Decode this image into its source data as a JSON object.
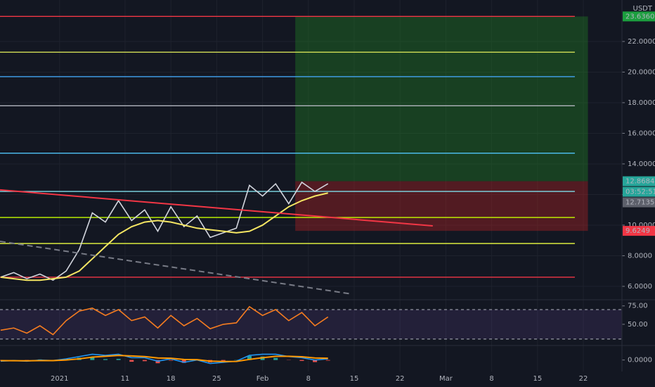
{
  "chart_data": [
    {
      "type": "line",
      "currency": "USDT",
      "x": [
        -9,
        -7,
        -5,
        -3,
        -1,
        1,
        3,
        5,
        7,
        9,
        11,
        13,
        15,
        17,
        19,
        21,
        23,
        25,
        27,
        29,
        31,
        33,
        35,
        37,
        39,
        41
      ],
      "series": [
        {
          "color": "#d1d4dc",
          "values": [
            6.6,
            6.9,
            6.5,
            6.8,
            6.4,
            7.0,
            8.4,
            10.8,
            10.2,
            11.6,
            10.3,
            11.0,
            9.6,
            11.2,
            9.9,
            10.6,
            9.2,
            9.5,
            9.8,
            12.6,
            11.9,
            12.7,
            11.4,
            12.8,
            12.2,
            12.71
          ]
        },
        {
          "color": "#f5e663",
          "values": [
            6.6,
            6.5,
            6.4,
            6.4,
            6.5,
            6.6,
            7.0,
            7.8,
            8.6,
            9.4,
            9.9,
            10.2,
            10.3,
            10.2,
            10.0,
            9.8,
            9.7,
            9.6,
            9.5,
            9.6,
            10.0,
            10.6,
            11.2,
            11.6,
            11.9,
            12.1
          ]
        }
      ],
      "xlim": [
        -9.1,
        85.9
      ],
      "xticks": [
        {
          "value": 0,
          "label": "2021"
        },
        {
          "value": 10,
          "label": "11"
        },
        {
          "value": 17,
          "label": "18"
        },
        {
          "value": 24,
          "label": "25"
        },
        {
          "value": 31,
          "label": "Feb"
        },
        {
          "value": 38,
          "label": "8"
        },
        {
          "value": 45,
          "label": "15"
        },
        {
          "value": 52,
          "label": "22"
        },
        {
          "value": 59,
          "label": "Mar"
        },
        {
          "value": 66,
          "label": "8"
        },
        {
          "value": 73,
          "label": "15"
        },
        {
          "value": 80,
          "label": "22"
        }
      ],
      "ylim": [
        5.17,
        24.71
      ],
      "yticks": [
        {
          "value": 6,
          "label": "6.0000"
        },
        {
          "value": 8,
          "label": "8.0000"
        },
        {
          "value": 10,
          "label": "10.0000"
        },
        {
          "value": 12,
          "label": "12.0000"
        },
        {
          "value": 14,
          "label": "14.0000"
        },
        {
          "value": 16,
          "label": "16.0000"
        },
        {
          "value": 18,
          "label": "18.0000"
        },
        {
          "value": 20,
          "label": "20.0000"
        },
        {
          "value": 22,
          "label": "22.0000"
        }
      ],
      "grid": true,
      "levels": [
        {
          "value": 23.636,
          "color": "#f23645"
        },
        {
          "value": 21.3,
          "color": "#d4e157"
        },
        {
          "value": 19.7,
          "color": "#42a5f5"
        },
        {
          "value": 17.8,
          "color": "#b2b5be"
        },
        {
          "value": 14.7,
          "color": "#4fc3f7"
        },
        {
          "value": 12.2,
          "color": "#80deea"
        },
        {
          "value": 10.5,
          "color": "#c6ff00"
        },
        {
          "value": 8.8,
          "color": "#eeff41"
        },
        {
          "value": 6.6,
          "color": "#f23645"
        }
      ],
      "level_end": 78.7,
      "position": {
        "start": 36,
        "end": 80.7,
        "entry": 12.8684,
        "target": 23.636,
        "stop": 9.6249
      },
      "trendlines": [
        {
          "x": [
            -9.1,
            57
          ],
          "y": [
            12.3,
            9.95
          ],
          "color": "#f23645",
          "dashed": false
        },
        {
          "x": [
            -9.1,
            44.6
          ],
          "y": [
            8.94,
            5.5
          ],
          "color": "#787b86",
          "dashed": true
        }
      ],
      "price_labels": [
        {
          "value": 23.636,
          "label": "23.6360",
          "color": "#1b9e3e"
        },
        {
          "value": 12.8684,
          "label": "12.8684",
          "color": "#26a69a"
        },
        {
          "value": 12.7135,
          "label": "12.7135",
          "color": "#5d606b"
        },
        {
          "value": 9.6249,
          "label": "9.6249",
          "color": "#f23645"
        }
      ],
      "countdown": "03:52:51"
    },
    {
      "type": "line",
      "x": [
        -9,
        -7,
        -5,
        -3,
        -1,
        1,
        3,
        5,
        7,
        9,
        11,
        13,
        15,
        17,
        19,
        21,
        23,
        25,
        27,
        29,
        31,
        33,
        35,
        37,
        39,
        41
      ],
      "series": [
        {
          "color": "#f57c20",
          "values": [
            42,
            45,
            38,
            48,
            36,
            55,
            68,
            72,
            62,
            70,
            55,
            60,
            45,
            62,
            48,
            58,
            44,
            50,
            52,
            74,
            62,
            70,
            55,
            66,
            48,
            60
          ]
        }
      ],
      "ylim": [
        22.2,
        82.4
      ],
      "yticks": [
        {
          "value": 50,
          "label": "50.00"
        },
        {
          "value": 75,
          "label": "75.00"
        }
      ],
      "band": [
        30,
        70
      ]
    },
    {
      "type": "line",
      "x": [
        -9,
        -7,
        -5,
        -3,
        -1,
        1,
        3,
        5,
        7,
        9,
        11,
        13,
        15,
        17,
        19,
        21,
        23,
        25,
        27,
        29,
        31,
        33,
        35,
        37,
        39,
        41
      ],
      "series": [
        {
          "color": "#2196f3",
          "values": [
            -0.1,
            -0.05,
            -0.1,
            0,
            -0.05,
            0.1,
            0.3,
            0.5,
            0.4,
            0.5,
            0.2,
            0.2,
            -0.1,
            0.1,
            -0.2,
            0,
            -0.3,
            -0.2,
            -0.1,
            0.4,
            0.5,
            0.5,
            0.3,
            0.2,
            0,
            0.1
          ]
        },
        {
          "color": "#ff9800",
          "values": [
            -0.05,
            -0.06,
            -0.07,
            -0.05,
            -0.05,
            0,
            0.1,
            0.25,
            0.32,
            0.4,
            0.35,
            0.3,
            0.18,
            0.15,
            0.05,
            0.03,
            -0.1,
            -0.13,
            -0.12,
            0.05,
            0.2,
            0.32,
            0.32,
            0.28,
            0.18,
            0.15
          ]
        }
      ],
      "histogram": [
        -0.05,
        0.01,
        -0.03,
        0.05,
        0,
        0.1,
        0.2,
        0.25,
        0.08,
        0.1,
        -0.15,
        -0.1,
        -0.28,
        -0.05,
        -0.25,
        -0.03,
        -0.2,
        -0.07,
        0.02,
        0.35,
        0.3,
        0.18,
        -0.02,
        -0.08,
        -0.18,
        -0.05
      ],
      "hist_colors": {
        "up": "#26a69a",
        "down": "#ef5350"
      },
      "ylim": [
        -1,
        1.2
      ],
      "yticks": [
        {
          "value": 0,
          "label": "0.0000"
        }
      ]
    }
  ]
}
